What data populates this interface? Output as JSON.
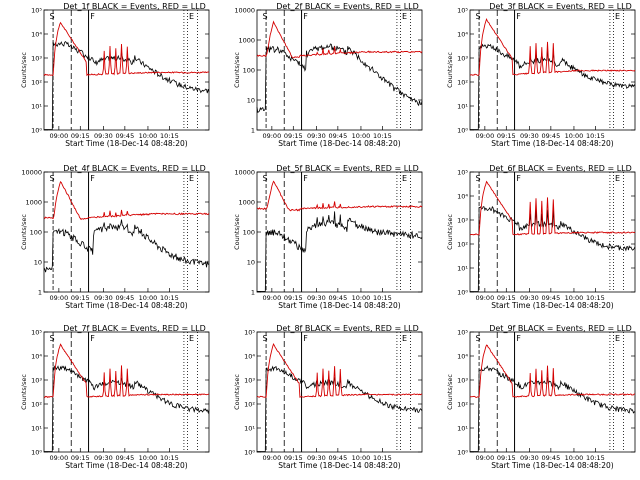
{
  "figure": {
    "xlabel": "Start Time (18-Dec-14 08:48:20)",
    "ylabel": "Counts/sec",
    "series_names": [
      "Events",
      "LLD"
    ],
    "series_colors": {
      "events": "#000000",
      "lld": "#d40000"
    },
    "time_ticks": [
      "09:00",
      "09:15",
      "09:30",
      "09:45",
      "10:00",
      "10:15"
    ],
    "interval_markers": [
      "S",
      "F",
      "E"
    ]
  },
  "chart_data": [
    {
      "id": "1f",
      "type": "line",
      "title": "Det_1f BLACK = Events, RED = LLD",
      "yscale": "log",
      "ylim": [
        1,
        100000
      ],
      "yticks": [
        "10⁰",
        "10¹",
        "10²",
        "10³",
        "10⁴",
        "10⁵"
      ],
      "lld": {
        "bg": 200,
        "peak": 30000,
        "spikes": [
          2000,
          3000,
          2500,
          4000,
          3000
        ],
        "tail": 250
      },
      "events": {
        "bg": 0.0,
        "plateau": 4000,
        "hump": 1000,
        "tail": 40
      }
    },
    {
      "id": "2f",
      "type": "line",
      "title": "Det_2f BLACK = Events, RED = LLD",
      "yscale": "log",
      "ylim": [
        1,
        10000
      ],
      "yticks": [
        "1",
        "10",
        "100",
        "1000",
        "10000"
      ],
      "lld": {
        "bg": 300,
        "peak": 4000,
        "spikes": [
          400,
          500,
          450,
          600,
          500
        ],
        "tail": 400
      },
      "events": {
        "bg": 5,
        "plateau": 500,
        "hump": 600,
        "tail": 5
      }
    },
    {
      "id": "3f",
      "type": "line",
      "title": "Det_3f BLACK = Events, RED = LLD",
      "yscale": "log",
      "ylim": [
        1,
        100000
      ],
      "yticks": [
        "10⁰",
        "10¹",
        "10²",
        "10³",
        "10⁴",
        "10⁵"
      ],
      "lld": {
        "bg": 200,
        "peak": 40000,
        "spikes": [
          3000,
          4000,
          3000,
          5000,
          4000
        ],
        "tail": 300
      },
      "events": {
        "bg": 0.0,
        "plateau": 3000,
        "hump": 800,
        "tail": 60
      }
    },
    {
      "id": "4f",
      "type": "line",
      "title": "Det_4f BLACK = Events, RED = LLD",
      "yscale": "log",
      "ylim": [
        1,
        10000
      ],
      "yticks": [
        "1",
        "10",
        "100",
        "1000",
        "10000"
      ],
      "lld": {
        "bg": 300,
        "peak": 5000,
        "spikes": [
          450,
          500,
          450,
          550,
          500
        ],
        "tail": 400
      },
      "events": {
        "bg": 6,
        "plateau": 100,
        "hump": 150,
        "tail": 8
      }
    },
    {
      "id": "5f",
      "type": "line",
      "title": "Det_5f BLACK = Events, RED = LLD",
      "yscale": "log",
      "ylim": [
        1,
        10000
      ],
      "yticks": [
        "1",
        "10",
        "100",
        "1000",
        "10000"
      ],
      "lld": {
        "bg": 600,
        "peak": 5000,
        "spikes": [
          800,
          900,
          850,
          1000,
          900
        ],
        "tail": 700
      },
      "events": {
        "bg": 0.0,
        "plateau": 100,
        "hump": 200,
        "tail": 80
      }
    },
    {
      "id": "6f",
      "type": "line",
      "title": "Det_6f BLACK = Events, RED = LLD",
      "yscale": "log",
      "ylim": [
        1,
        100000
      ],
      "yticks": [
        "10⁰",
        "10¹",
        "10²",
        "10³",
        "10⁴",
        "10⁵"
      ],
      "lld": {
        "bg": 250,
        "peak": 40000,
        "spikes": [
          6000,
          8000,
          6000,
          9000,
          7000
        ],
        "tail": 300
      },
      "events": {
        "bg": 0.0,
        "plateau": 3000,
        "hump": 700,
        "tail": 60
      }
    },
    {
      "id": "7f",
      "type": "line",
      "title": "Det_7f BLACK = Events, RED = LLD",
      "yscale": "log",
      "ylim": [
        1,
        100000
      ],
      "yticks": [
        "10⁰",
        "10¹",
        "10²",
        "10³",
        "10⁴",
        "10⁵"
      ],
      "lld": {
        "bg": 200,
        "peak": 30000,
        "spikes": [
          2000,
          3000,
          2500,
          4000,
          3000
        ],
        "tail": 250
      },
      "events": {
        "bg": 0.0,
        "plateau": 3000,
        "hump": 800,
        "tail": 50
      }
    },
    {
      "id": "8f",
      "type": "line",
      "title": "Det_8f BLACK = Events, RED = LLD",
      "yscale": "log",
      "ylim": [
        1,
        100000
      ],
      "yticks": [
        "10⁰",
        "10¹",
        "10²",
        "10³",
        "10⁴",
        "10⁵"
      ],
      "lld": {
        "bg": 200,
        "peak": 30000,
        "spikes": [
          2000,
          3000,
          2500,
          4000,
          3000
        ],
        "tail": 250
      },
      "events": {
        "bg": 0.0,
        "plateau": 3000,
        "hump": 800,
        "tail": 50
      }
    },
    {
      "id": "9f",
      "type": "line",
      "title": "Det_9f BLACK = Events, RED = LLD",
      "yscale": "log",
      "ylim": [
        1,
        100000
      ],
      "yticks": [
        "10⁰",
        "10¹",
        "10²",
        "10³",
        "10⁴",
        "10⁵"
      ],
      "lld": {
        "bg": 200,
        "peak": 30000,
        "spikes": [
          2000,
          3000,
          2500,
          4000,
          3000
        ],
        "tail": 250
      },
      "events": {
        "bg": 0.0,
        "plateau": 3000,
        "hump": 800,
        "tail": 50
      }
    }
  ]
}
